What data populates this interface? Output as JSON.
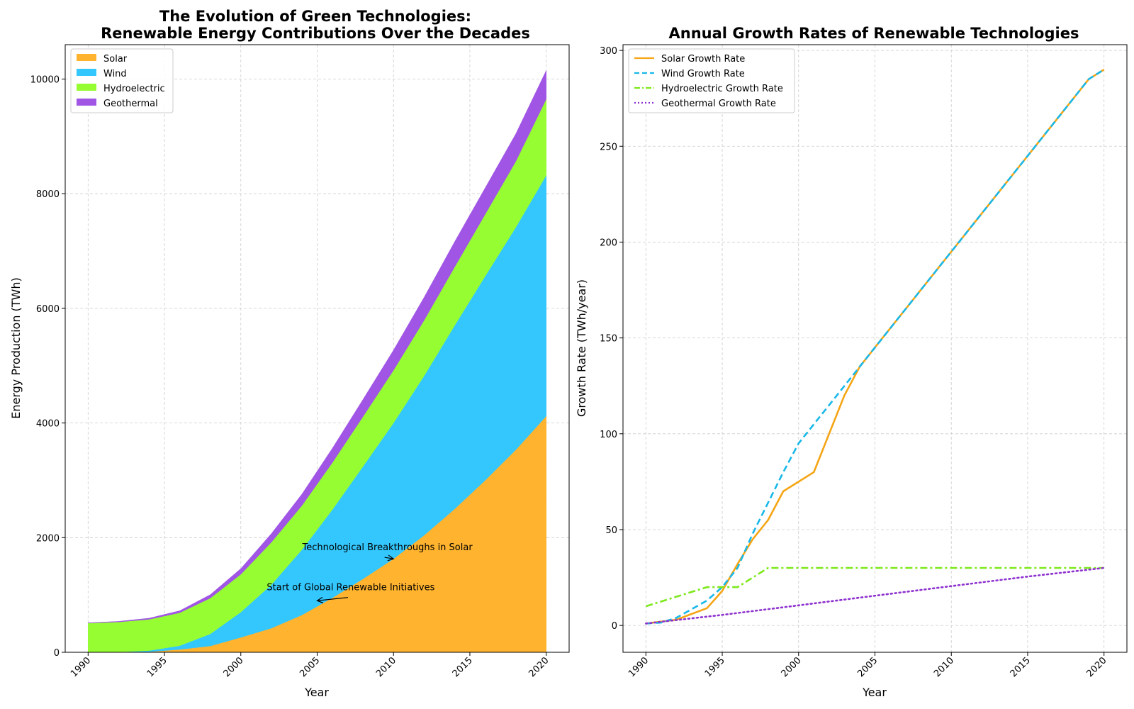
{
  "chart_data": [
    {
      "type": "area",
      "stacked": true,
      "title_lines": [
        "The Evolution of Green Technologies:",
        "Renewable Energy Contributions Over the Decades"
      ],
      "xlabel": "Year",
      "ylabel": "Energy Production (TWh)",
      "xlim": [
        1988.5,
        2021.5
      ],
      "ylim": [
        0,
        10600
      ],
      "xticks": [
        1990,
        1995,
        2000,
        2005,
        2010,
        2015,
        2020
      ],
      "yticks": [
        0,
        2000,
        4000,
        6000,
        8000,
        10000
      ],
      "grid": true,
      "legend_position": "upper-left",
      "x": [
        1990,
        1992,
        1994,
        1996,
        1998,
        2000,
        2002,
        2004,
        2006,
        2008,
        2010,
        2012,
        2014,
        2016,
        2018,
        2020
      ],
      "series": [
        {
          "name": "Solar",
          "color": "#ffb32e",
          "values": [
            0,
            2,
            10,
            50,
            110,
            260,
            420,
            650,
            950,
            1280,
            1630,
            2040,
            2500,
            3000,
            3530,
            4120
          ]
        },
        {
          "name": "Wind",
          "color": "#33c7fd",
          "values": [
            0,
            2,
            20,
            65,
            210,
            440,
            760,
            1140,
            1540,
            1960,
            2370,
            2780,
            3200,
            3560,
            3880,
            4200
          ]
        },
        {
          "name": "Hydroelectric",
          "color": "#96fd33",
          "values": [
            510,
            525,
            545,
            575,
            625,
            660,
            740,
            770,
            820,
            870,
            920,
            970,
            1020,
            1080,
            1150,
            1330
          ]
        },
        {
          "name": "Geothermal",
          "color": "#a055e5",
          "values": [
            5,
            10,
            20,
            35,
            60,
            100,
            150,
            200,
            250,
            300,
            350,
            400,
            440,
            460,
            480,
            500
          ]
        }
      ],
      "annotations": [
        {
          "text": "Technological Breakthroughs in Solar",
          "text_x": 2009.6,
          "text_y": 1780,
          "point_x": 2010,
          "point_y": 1630
        },
        {
          "text": "Start of Global Renewable Initiatives",
          "text_x": 2007.2,
          "text_y": 1080,
          "point_x": 2005,
          "point_y": 900
        }
      ]
    },
    {
      "type": "line",
      "title_lines": [
        "Annual Growth Rates of Renewable Technologies"
      ],
      "xlabel": "Year",
      "ylabel": "Growth Rate (TWh/year)",
      "xlim": [
        1988.5,
        2021.5
      ],
      "ylim": [
        -14,
        303
      ],
      "xticks": [
        1990,
        1995,
        2000,
        2005,
        2010,
        2015,
        2020
      ],
      "yticks": [
        0,
        50,
        100,
        150,
        200,
        250,
        300
      ],
      "grid": true,
      "legend_position": "upper-left",
      "series": [
        {
          "name": "Solar Growth Rate",
          "color": "#f5a514",
          "dash": "solid",
          "x": [
            1990,
            1992,
            1994,
            1995,
            1996,
            1997,
            1998,
            1999,
            2000,
            2001,
            2003,
            2004,
            2005,
            2010,
            2015,
            2019,
            2020
          ],
          "values": [
            1,
            3,
            9,
            18,
            32,
            45,
            55,
            70,
            75,
            80,
            120,
            135,
            145,
            195,
            245,
            285,
            290
          ]
        },
        {
          "name": "Wind Growth Rate",
          "color": "#19b8e8",
          "dash": "dashed",
          "x": [
            1990,
            1991,
            1992,
            1994,
            1995,
            1996,
            1997,
            1998,
            1999,
            2000,
            2002,
            2004,
            2005,
            2010,
            2015,
            2019,
            2020
          ],
          "values": [
            1,
            1.5,
            4,
            13,
            20,
            30,
            48,
            64,
            80,
            95,
            115,
            135,
            145,
            195,
            245,
            285,
            290
          ]
        },
        {
          "name": "Hydroelectric Growth Rate",
          "color": "#7de81a",
          "dash": "dashdot",
          "x": [
            1990,
            1994,
            1996,
            1998,
            2000,
            2005,
            2010,
            2015,
            2020
          ],
          "values": [
            10,
            20,
            20,
            30,
            30,
            30,
            30,
            30,
            30
          ]
        },
        {
          "name": "Geothermal Growth Rate",
          "color": "#8e32cf",
          "dash": "dotted",
          "x": [
            1990,
            1995,
            2000,
            2005,
            2010,
            2015,
            2020
          ],
          "values": [
            1,
            5.5,
            10.5,
            15.5,
            20.5,
            25.5,
            30
          ]
        }
      ]
    }
  ]
}
